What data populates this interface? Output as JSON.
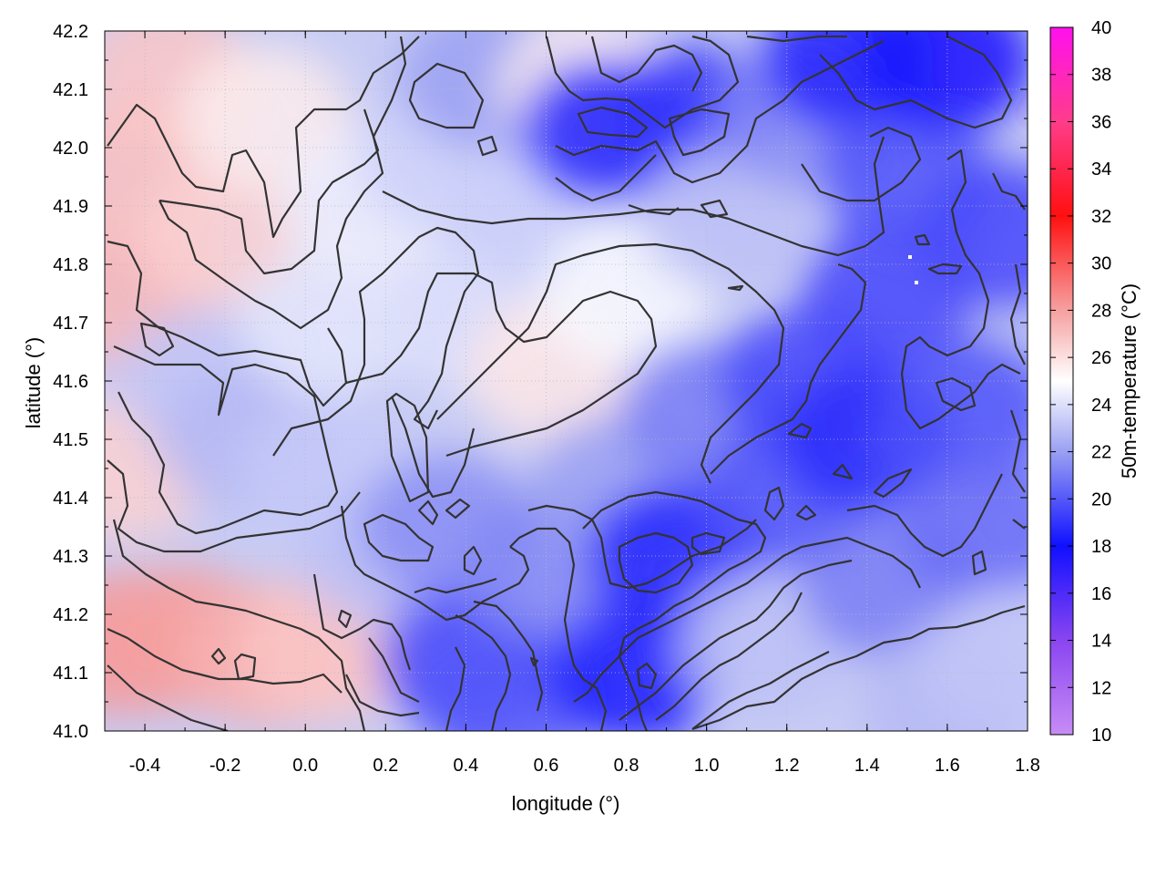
{
  "chart_data": {
    "type": "heatmap",
    "title": "",
    "xlabel": "longitude (°)",
    "ylabel": "latitude (°)",
    "colorbar_label": "50m-temperature (°C)",
    "xlim": [
      -0.5,
      1.8
    ],
    "ylim": [
      41.0,
      42.2
    ],
    "x_ticks": [
      "-0.4",
      "-0.2",
      "0.0",
      "0.2",
      "0.4",
      "0.6",
      "0.8",
      "1.0",
      "1.2",
      "1.4",
      "1.6",
      "1.8"
    ],
    "x_tick_values": [
      -0.4,
      -0.2,
      0.0,
      0.2,
      0.4,
      0.6,
      0.8,
      1.0,
      1.2,
      1.4,
      1.6,
      1.8
    ],
    "y_ticks": [
      "41.0",
      "41.1",
      "41.2",
      "41.3",
      "41.4",
      "41.5",
      "41.6",
      "41.7",
      "41.8",
      "41.9",
      "42.0",
      "42.1",
      "42.2"
    ],
    "y_tick_values": [
      41.0,
      41.1,
      41.2,
      41.3,
      41.4,
      41.5,
      41.6,
      41.7,
      41.8,
      41.9,
      42.0,
      42.1,
      42.2
    ],
    "colorbar_ticks": [
      "10",
      "12",
      "14",
      "16",
      "18",
      "20",
      "22",
      "24",
      "26",
      "28",
      "30",
      "32",
      "34",
      "36",
      "38",
      "40"
    ],
    "colorbar_range": [
      10,
      40
    ],
    "colormap": [
      {
        "value": 10,
        "color": "#c88cf5"
      },
      {
        "value": 14,
        "color": "#8a45f0"
      },
      {
        "value": 18,
        "color": "#1010ff"
      },
      {
        "value": 22,
        "color": "#9aa0f2"
      },
      {
        "value": 25,
        "color": "#ffffff"
      },
      {
        "value": 28,
        "color": "#f6a0a0"
      },
      {
        "value": 32,
        "color": "#ff1010"
      },
      {
        "value": 36,
        "color": "#ff3c8a"
      },
      {
        "value": 40,
        "color": "#ff10ee"
      }
    ],
    "grid": true,
    "field_samples": [
      {
        "lon": -0.45,
        "lat": 41.15,
        "t": 28.2
      },
      {
        "lon": -0.3,
        "lat": 41.16,
        "t": 28.0
      },
      {
        "lon": -0.1,
        "lat": 41.13,
        "t": 27.5
      },
      {
        "lon": 0.05,
        "lat": 41.14,
        "t": 26.8
      },
      {
        "lon": -0.45,
        "lat": 41.45,
        "t": 26.5
      },
      {
        "lon": -0.45,
        "lat": 41.75,
        "t": 27.3
      },
      {
        "lon": -0.42,
        "lat": 41.95,
        "t": 27.0
      },
      {
        "lon": -0.35,
        "lat": 42.12,
        "t": 26.8
      },
      {
        "lon": -0.2,
        "lat": 41.85,
        "t": 26.5
      },
      {
        "lon": -0.1,
        "lat": 42.05,
        "t": 25.6
      },
      {
        "lon": -0.25,
        "lat": 41.6,
        "t": 23.2
      },
      {
        "lon": -0.15,
        "lat": 41.5,
        "t": 22.8
      },
      {
        "lon": 0.05,
        "lat": 41.7,
        "t": 24.2
      },
      {
        "lon": 0.05,
        "lat": 41.45,
        "t": 23.3
      },
      {
        "lon": 0.2,
        "lat": 41.3,
        "t": 23.0
      },
      {
        "lon": 0.15,
        "lat": 41.9,
        "t": 24.5
      },
      {
        "lon": 0.35,
        "lat": 41.98,
        "t": 23.5
      },
      {
        "lon": 0.45,
        "lat": 42.12,
        "t": 22.0
      },
      {
        "lon": 0.4,
        "lat": 41.7,
        "t": 24.0
      },
      {
        "lon": 0.35,
        "lat": 41.35,
        "t": 21.5
      },
      {
        "lon": 0.4,
        "lat": 41.12,
        "t": 19.5
      },
      {
        "lon": 0.5,
        "lat": 41.05,
        "t": 20.0
      },
      {
        "lon": 0.6,
        "lat": 41.28,
        "t": 21.3
      },
      {
        "lon": 0.62,
        "lat": 41.62,
        "t": 25.8
      },
      {
        "lon": 0.6,
        "lat": 41.88,
        "t": 23.5
      },
      {
        "lon": 0.7,
        "lat": 42.1,
        "t": 25.5
      },
      {
        "lon": 0.75,
        "lat": 42.03,
        "t": 18.5
      },
      {
        "lon": 0.8,
        "lat": 41.75,
        "t": 24.8
      },
      {
        "lon": 0.78,
        "lat": 41.42,
        "t": 22.0
      },
      {
        "lon": 0.82,
        "lat": 41.1,
        "t": 18.2
      },
      {
        "lon": 0.92,
        "lat": 41.3,
        "t": 18.5
      },
      {
        "lon": 0.95,
        "lat": 42.05,
        "t": 19.0
      },
      {
        "lon": 1.0,
        "lat": 41.55,
        "t": 21.0
      },
      {
        "lon": 1.05,
        "lat": 41.88,
        "t": 23.0
      },
      {
        "lon": 1.15,
        "lat": 41.15,
        "t": 23.0
      },
      {
        "lon": 1.2,
        "lat": 41.4,
        "t": 19.8
      },
      {
        "lon": 1.25,
        "lat": 41.6,
        "t": 19.5
      },
      {
        "lon": 1.25,
        "lat": 42.05,
        "t": 21.5
      },
      {
        "lon": 1.35,
        "lat": 42.15,
        "t": 18.5
      },
      {
        "lon": 1.4,
        "lat": 41.5,
        "t": 18.8
      },
      {
        "lon": 1.45,
        "lat": 41.75,
        "t": 19.5
      },
      {
        "lon": 1.5,
        "lat": 41.95,
        "t": 19.8
      },
      {
        "lon": 1.45,
        "lat": 41.25,
        "t": 21.0
      },
      {
        "lon": 1.6,
        "lat": 42.15,
        "t": 17.8
      },
      {
        "lon": 1.65,
        "lat": 41.55,
        "t": 19.8
      },
      {
        "lon": 1.75,
        "lat": 41.85,
        "t": 19.5
      },
      {
        "lon": 1.7,
        "lat": 41.35,
        "t": 20.5
      },
      {
        "lon": 1.6,
        "lat": 41.05,
        "t": 22.8
      },
      {
        "lon": 1.75,
        "lat": 41.12,
        "t": 23.2
      }
    ]
  }
}
